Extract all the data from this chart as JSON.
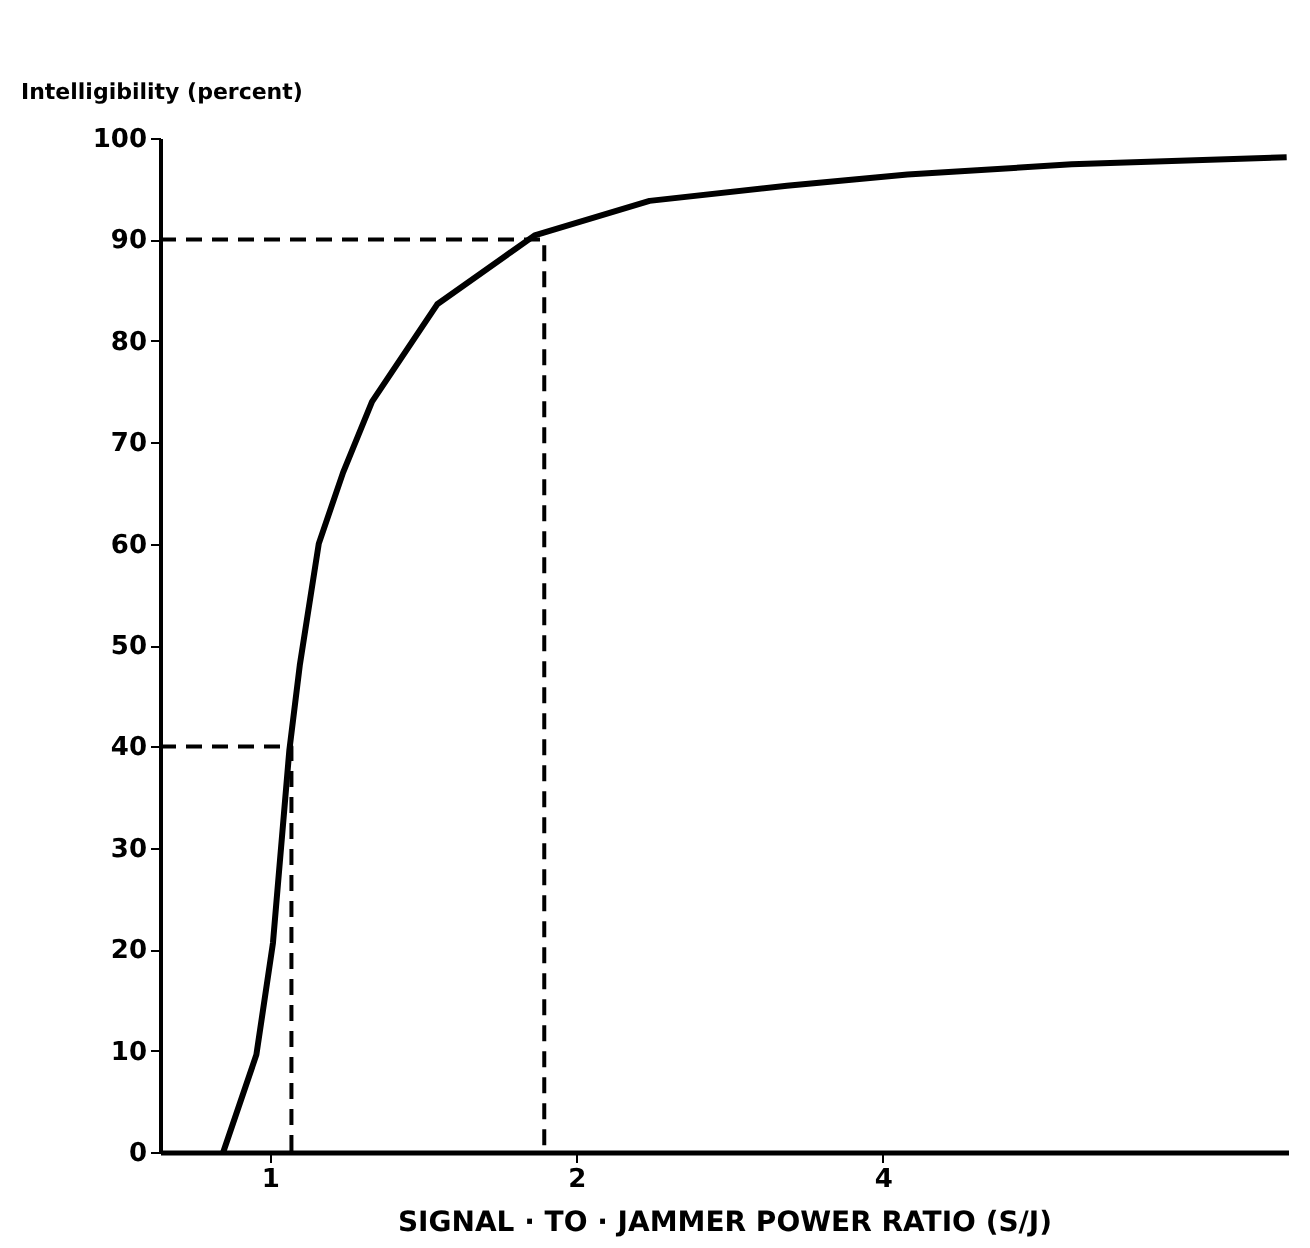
{
  "chart_data": {
    "type": "line",
    "ylabel": "Intelligibility  (percent)",
    "xlabel": "SIGNAL · TO · JAMMER POWER RATIO (S/J)",
    "log": "x",
    "xlim": [
      0.78,
      10
    ],
    "xticks": [
      1,
      2,
      4
    ],
    "ylim": [
      0,
      100
    ],
    "yticks": [
      0,
      10,
      20,
      30,
      40,
      50,
      60,
      70,
      80,
      90,
      100
    ],
    "grid": false,
    "marker": "none",
    "series": [
      {
        "color": "#000000",
        "line_style": "solid",
        "x": [
          0.9,
          0.97,
          1.007,
          1.045,
          1.07,
          1.117,
          1.18,
          1.26,
          1.46,
          1.82,
          2.36,
          3.22,
          4.23,
          6.13,
          9.97
        ],
        "values": [
          0,
          9.6,
          20.6,
          39.6,
          48,
          60,
          67,
          74,
          83.6,
          90.4,
          93.8,
          95.3,
          96.4,
          97.4,
          98.1
        ]
      },
      {
        "color": "#000000",
        "line_style": "dashed",
        "x": [
          0.78,
          1.86,
          1.86
        ],
        "values": [
          90,
          90,
          0
        ]
      },
      {
        "color": "#000000",
        "line_style": "dashed",
        "x": [
          0.78,
          1.05,
          1.05
        ],
        "values": [
          40,
          40,
          0
        ]
      }
    ]
  }
}
